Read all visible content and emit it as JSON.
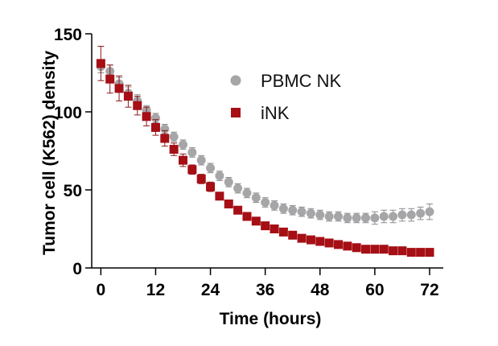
{
  "chart_data": {
    "type": "scatter",
    "title": "",
    "xlabel": "Time (hours)",
    "ylabel": "Tumor cell (K562) density",
    "xlim": [
      -2,
      75
    ],
    "ylim": [
      0,
      150
    ],
    "xticks": [
      0,
      12,
      24,
      36,
      48,
      60,
      72
    ],
    "yticks": [
      0,
      50,
      100,
      150
    ],
    "legend_position": "top-right",
    "series": [
      {
        "name": "PBMC NK",
        "color": "#a6a6a8",
        "marker": "circle",
        "x": [
          0,
          2,
          4,
          6,
          8,
          10,
          12,
          14,
          16,
          18,
          20,
          22,
          24,
          26,
          28,
          30,
          32,
          34,
          36,
          38,
          40,
          42,
          44,
          46,
          48,
          50,
          52,
          54,
          56,
          58,
          60,
          62,
          64,
          66,
          68,
          70,
          72
        ],
        "y": [
          129,
          126,
          118,
          112,
          107,
          101,
          96,
          89,
          84,
          79,
          74,
          69,
          64,
          59,
          55,
          51,
          48,
          45,
          42,
          40,
          38,
          37,
          36,
          35,
          34,
          33,
          33,
          32,
          32,
          32,
          32,
          33,
          33,
          34,
          34,
          35,
          36
        ],
        "err": [
          4,
          4,
          4,
          4,
          4,
          3,
          3,
          3,
          3,
          3,
          3,
          3,
          3,
          3,
          3,
          3,
          3,
          3,
          3,
          3,
          3,
          3,
          3,
          3,
          3,
          3,
          3,
          3,
          3,
          3,
          4,
          4,
          4,
          4,
          4,
          4,
          5
        ]
      },
      {
        "name": "iNK",
        "color": "#a50f15",
        "marker": "square",
        "x": [
          0,
          2,
          4,
          6,
          8,
          10,
          12,
          14,
          16,
          18,
          20,
          22,
          24,
          26,
          28,
          30,
          32,
          34,
          36,
          38,
          40,
          42,
          44,
          46,
          48,
          50,
          52,
          54,
          56,
          58,
          60,
          62,
          64,
          66,
          68,
          70,
          72
        ],
        "y": [
          131,
          121,
          115,
          110,
          104,
          97,
          90,
          83,
          76,
          69,
          63,
          57,
          52,
          46,
          41,
          37,
          33,
          30,
          27,
          25,
          23,
          21,
          19,
          18,
          17,
          16,
          15,
          14,
          13,
          12,
          12,
          12,
          11,
          11,
          10,
          10,
          10
        ],
        "err": [
          11,
          9,
          8,
          7,
          6,
          6,
          5,
          5,
          4,
          4,
          3,
          3,
          3,
          2,
          2,
          2,
          2,
          2,
          2,
          2,
          2,
          2,
          2,
          2,
          2,
          2,
          2,
          2,
          2,
          2,
          2,
          2,
          2,
          2,
          2,
          2,
          2
        ]
      }
    ]
  }
}
